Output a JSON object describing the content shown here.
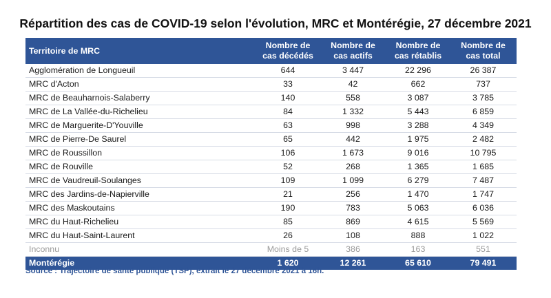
{
  "title": "Répartition des cas de COVID-19 selon l'évolution, MRC et Montérégie, 27 décembre 2021",
  "table": {
    "headers": {
      "region": "Territoire de MRC",
      "deceased": [
        "Nombre de",
        "cas décédés"
      ],
      "active": [
        "Nombre de",
        "cas actifs"
      ],
      "recovered": [
        "Nombre de",
        "cas rétablis"
      ],
      "total": [
        "Nombre de",
        "cas total"
      ]
    },
    "rows": [
      [
        "Agglomération de Longueuil",
        "644",
        "3 447",
        "22 296",
        "26 387"
      ],
      [
        "MRC d'Acton",
        "33",
        "42",
        "662",
        "737"
      ],
      [
        "MRC de Beauharnois-Salaberry",
        "140",
        "558",
        "3 087",
        "3 785"
      ],
      [
        "MRC de La Vallée-du-Richelieu",
        "84",
        "1 332",
        "5 443",
        "6 859"
      ],
      [
        "MRC de Marguerite-D'Youville",
        "63",
        "998",
        "3 288",
        "4 349"
      ],
      [
        "MRC de Pierre-De Saurel",
        "65",
        "442",
        "1 975",
        "2 482"
      ],
      [
        "MRC de Roussillon",
        "106",
        "1 673",
        "9 016",
        "10 795"
      ],
      [
        "MRC de Rouville",
        "52",
        "268",
        "1 365",
        "1 685"
      ],
      [
        "MRC de Vaudreuil-Soulanges",
        "109",
        "1 099",
        "6 279",
        "7 487"
      ],
      [
        "MRC des Jardins-de-Napierville",
        "21",
        "256",
        "1 470",
        "1 747"
      ],
      [
        "MRC des Maskoutains",
        "190",
        "783",
        "5 063",
        "6 036"
      ],
      [
        "MRC du Haut-Richelieu",
        "85",
        "869",
        "4 615",
        "5 569"
      ],
      [
        "MRC du Haut-Saint-Laurent",
        "26",
        "108",
        "888",
        "1 022"
      ]
    ],
    "unknown_row": [
      "Inconnu",
      "Moins de 5",
      "386",
      "163",
      "551"
    ],
    "total_row": [
      "Montérégie",
      "1 620",
      "12 261",
      "65 610",
      "79 491"
    ]
  },
  "source": "Source : Trajectoire de santé publique (TSP), extrait le 27 décembre 2021 à 16h.",
  "colors": {
    "header_bg": "#2f5597",
    "header_text": "#ffffff",
    "unknown_text": "#9a9a9a",
    "source_text": "#2f5597"
  }
}
